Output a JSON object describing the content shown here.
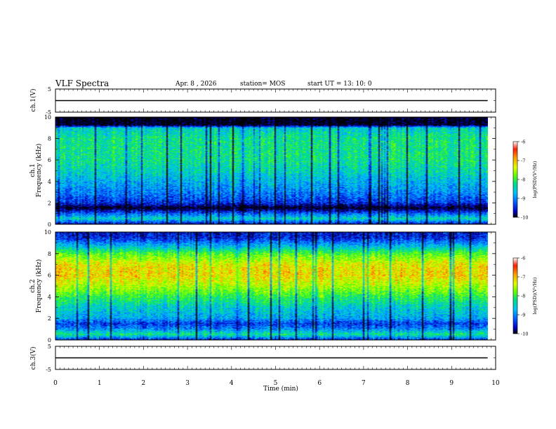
{
  "header": {
    "title": "VLF Spectra",
    "date": "Apr. 8 , 2026",
    "station": "station= MOS",
    "start": "start UT = 13: 10: 0"
  },
  "colors": {
    "background": "#ffffff",
    "trace": "#000000",
    "colormap": [
      "#000000",
      "#0000c8",
      "#0060ff",
      "#00c0ff",
      "#00e080",
      "#60ff00",
      "#e0ff00",
      "#ffa000",
      "#ff2000",
      "#ffffff"
    ]
  },
  "chart_data": [
    {
      "type": "line",
      "panel": "ch1-waveform",
      "ylabel": "ch.1(V)",
      "ylim": [
        -5,
        5
      ],
      "yticks": [
        "5",
        "-5"
      ],
      "x": [
        0,
        9.82
      ],
      "y": [
        0,
        0
      ]
    },
    {
      "type": "heatmap",
      "panel": "ch1-spectrogram",
      "ylabel": "ch.1\nFrequency (kHz)",
      "ylim": [
        0,
        10
      ],
      "yticks": [
        "0",
        "2",
        "4",
        "6",
        "8",
        "10"
      ],
      "xlim": [
        0,
        9.82
      ],
      "colorbar": {
        "label": "log(PSD)(V²/Hz)",
        "range": [
          -10,
          -6
        ],
        "ticks": [
          "-6",
          "-7",
          "-8",
          "-9",
          "-10"
        ]
      },
      "profile": {
        "freq_khz": [
          0,
          0.5,
          1.0,
          1.5,
          2.0,
          3.0,
          4.0,
          5.0,
          6.0,
          7.0,
          8.0,
          9.0,
          9.3,
          10
        ],
        "log_psd": [
          -9.4,
          -8.2,
          -9.0,
          -10,
          -9.2,
          -8.8,
          -8.5,
          -8.2,
          -8.0,
          -8.0,
          -8.0,
          -8.3,
          -10,
          -10
        ]
      }
    },
    {
      "type": "heatmap",
      "panel": "ch2-spectrogram",
      "ylabel": "ch.2\nFrequency (kHz)",
      "ylim": [
        0,
        10
      ],
      "yticks": [
        "0",
        "2",
        "4",
        "6",
        "8",
        "10"
      ],
      "xlim": [
        0,
        9.82
      ],
      "colorbar": {
        "label": "log(PSD)(V²/Hz)",
        "range": [
          -10,
          -6
        ],
        "ticks": [
          "-6",
          "-7",
          "-8",
          "-9",
          "-10"
        ]
      },
      "profile": {
        "freq_khz": [
          0,
          0.5,
          1.0,
          1.5,
          2.0,
          3.0,
          4.0,
          5.0,
          6.0,
          7.0,
          8.0,
          9.0,
          9.5,
          10
        ],
        "log_psd": [
          -9.2,
          -8.0,
          -8.8,
          -9.2,
          -8.6,
          -8.3,
          -7.8,
          -7.2,
          -6.8,
          -6.9,
          -7.6,
          -8.8,
          -9.3,
          -9.4
        ]
      }
    },
    {
      "type": "line",
      "panel": "ch3-waveform",
      "ylabel": "ch.3(V)",
      "ylim": [
        -5,
        5
      ],
      "yticks": [
        "5",
        "-5"
      ],
      "x": [
        0,
        9.82
      ],
      "y": [
        0,
        0
      ]
    }
  ],
  "xaxis": {
    "label": "Time (min)",
    "range": [
      0,
      10
    ],
    "ticks": [
      "0",
      "1",
      "2",
      "3",
      "4",
      "5",
      "6",
      "7",
      "8",
      "9",
      "10"
    ]
  }
}
